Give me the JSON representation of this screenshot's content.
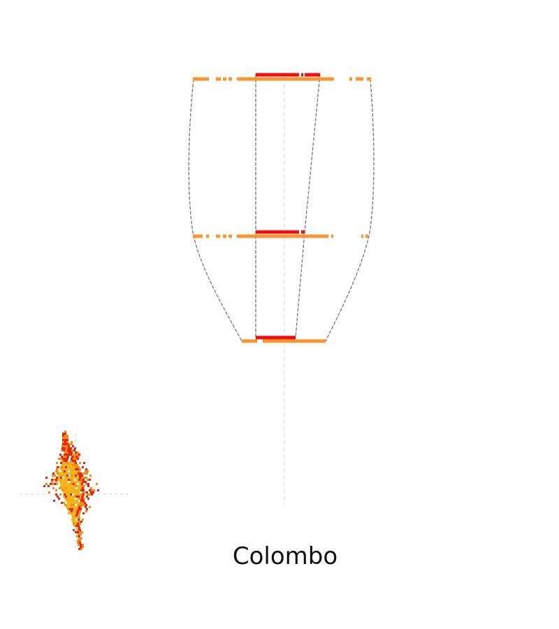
{
  "title": "Colombo",
  "colors": {
    "outer_band": "#fb9532",
    "inner_band": "#ee0f10",
    "outline": "#7f7f7f",
    "axis": "#d4d4d4",
    "blob_light": "#f8b219",
    "blob_mid": "#f48a1a",
    "blob_dark": "#e8230f"
  }
}
